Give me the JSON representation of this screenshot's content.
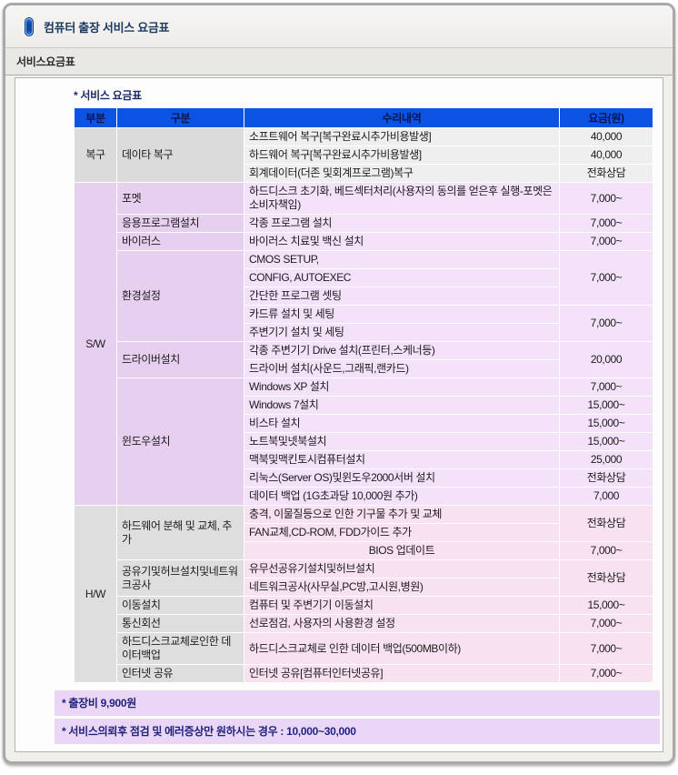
{
  "window": {
    "title": "컴퓨터 출장 서비스 요금표"
  },
  "section_bar": {
    "label": "서비스요금표"
  },
  "panel": {
    "caption": "* 서비스 요금표"
  },
  "table": {
    "headers": [
      "부분",
      "구분",
      "수리내역",
      "요금(원)"
    ],
    "rows": [
      {
        "sec": "rec",
        "p": {
          "text": "복구",
          "rowspan": 3
        },
        "c": {
          "text": "데이타 복구",
          "rowspan": 3
        },
        "d": {
          "text": "소프트웨어 복구[복구완료시추가비용발생]"
        },
        "f": {
          "text": "40,000"
        }
      },
      {
        "sec": "rec",
        "d": {
          "text": "하드웨어 복구[복구완료시추가비용발생]"
        },
        "f": {
          "text": "40,000"
        }
      },
      {
        "sec": "rec",
        "d": {
          "text": "회계데이터(더존 및회계프로그램)복구"
        },
        "f": {
          "text": "전화상담"
        }
      },
      {
        "sec": "sw",
        "p": {
          "text": "S/W",
          "rowspan": 17
        },
        "c": {
          "text": "포멧"
        },
        "d": {
          "text": "하드디스크 초기화, 베드섹터처리(사용자의 동의를 얻은후 실행-포멧은 소비자책임)"
        },
        "f": {
          "text": "7,000~"
        }
      },
      {
        "sec": "sw",
        "c": {
          "text": "응용프로그램설치"
        },
        "d": {
          "text": "각종 프로그램 설치"
        },
        "f": {
          "text": "7,000~"
        }
      },
      {
        "sec": "sw",
        "c": {
          "text": "바이러스"
        },
        "d": {
          "text": "바이러스 치료및 백신 설치"
        },
        "f": {
          "text": "7,000~"
        }
      },
      {
        "sec": "sw",
        "c": {
          "text": "환경설정",
          "rowspan": 5
        },
        "d": {
          "text": "CMOS SETUP,"
        },
        "f": {
          "text": "7,000~",
          "rowspan": 3
        }
      },
      {
        "sec": "sw",
        "d": {
          "text": "CONFIG, AUTOEXEC"
        }
      },
      {
        "sec": "sw",
        "d": {
          "text": "간단한 프로그램 셋팅"
        }
      },
      {
        "sec": "sw",
        "d": {
          "text": "카드류 설치 및 세팅"
        },
        "f": {
          "text": "7,000~",
          "rowspan": 2
        }
      },
      {
        "sec": "sw",
        "d": {
          "text": "주변기기 설치 및 세팅"
        }
      },
      {
        "sec": "sw",
        "c": {
          "text": "드라이버설치",
          "rowspan": 2
        },
        "d": {
          "text": "각종 주변기기 Drive 설치(프린터,스케너등)"
        },
        "f": {
          "text": "20,000",
          "rowspan": 2
        }
      },
      {
        "sec": "sw",
        "d": {
          "text": "드라이버 설치(사운드,그래픽,랜카드)"
        }
      },
      {
        "sec": "sw",
        "c": {
          "text": "윈도우설치",
          "rowspan": 7
        },
        "d": {
          "text": "Windows XP 설치"
        },
        "f": {
          "text": "7,000~"
        }
      },
      {
        "sec": "sw",
        "d": {
          "text": "Windows 7설치"
        },
        "f": {
          "text": "15,000~"
        }
      },
      {
        "sec": "sw",
        "d": {
          "text": "비스타 설치"
        },
        "f": {
          "text": "15,000~"
        }
      },
      {
        "sec": "sw",
        "d": {
          "text": "노트북및넷북설치"
        },
        "f": {
          "text": "15,000~"
        }
      },
      {
        "sec": "sw",
        "d": {
          "text": "맥북및맥킨토시컴퓨터설치"
        },
        "f": {
          "text": "25,000"
        }
      },
      {
        "sec": "sw",
        "d": {
          "text": "리눅스(Server OS)및윈도우2000서버 설치"
        },
        "f": {
          "text": "전화상담"
        }
      },
      {
        "sec": "sw",
        "d": {
          "text": "데이터 백업 (1G초과당 10,000원 추가)"
        },
        "f": {
          "text": "7,000"
        }
      },
      {
        "sec": "hw",
        "p": {
          "text": "H/W",
          "rowspan": 9
        },
        "c": {
          "text": "하드웨어 분해 및 교체, 추가",
          "rowspan": 3
        },
        "d": {
          "text": "충격, 이물질등으로 인한 기구물 추가 및 교체"
        },
        "f": {
          "text": "전화상담",
          "rowspan": 2
        }
      },
      {
        "sec": "hw",
        "d": {
          "text": "FAN교체,CD-ROM, FDD가이드 추가"
        }
      },
      {
        "sec": "hw",
        "d": {
          "text": "BIOS 업데이트",
          "align": "center"
        },
        "f": {
          "text": "7,000~"
        }
      },
      {
        "sec": "hw",
        "c": {
          "text": "공유기및허브설치및네트워크공사",
          "rowspan": 2
        },
        "d": {
          "text": "유무선공유기설치및허브설치"
        },
        "f": {
          "text": "전화상담",
          "rowspan": 2
        }
      },
      {
        "sec": "hw",
        "d": {
          "text": "네트워크공사(사무실,PC방,고시원,병원)"
        }
      },
      {
        "sec": "hw",
        "c": {
          "text": "이동설치"
        },
        "d": {
          "text": "컴퓨터 및 주변기기 이동설치"
        },
        "f": {
          "text": "15,000~"
        }
      },
      {
        "sec": "hw",
        "c": {
          "text": "통신회선"
        },
        "d": {
          "text": "선로점검, 사용자의 사용환경 설정"
        },
        "f": {
          "text": "7,000~"
        }
      },
      {
        "sec": "hw",
        "c": {
          "text": "하드디스크교체로인한 데이터백업"
        },
        "d": {
          "text": "하드디스크교체로 인한 데이터 백업(500MB이하)"
        },
        "f": {
          "text": "7,000~"
        }
      },
      {
        "sec": "hw",
        "c": {
          "text": "인터넷 공유"
        },
        "d": {
          "text": "인터넷 공유[컴퓨터인터넷공유]"
        },
        "f": {
          "text": "7,000~"
        }
      }
    ]
  },
  "notes": [
    "* 출장비 9,900원",
    "* 서비스의뢰후 점검 및 에러증상만 원하시는 경우 : 10,000~30,000"
  ],
  "colors": {
    "header_bg": "#0b53e3",
    "header_text": "#0a1553",
    "rec_left": "#dbdbdb",
    "rec_body": "#efefef",
    "sw_left": "#e7cff0",
    "sw_body": "#f4e1fa",
    "hw_left": "#dedede",
    "hw_body": "#f8e1f0",
    "note_bg": "#e9d7f5",
    "note_text": "#22227e",
    "title_text": "#1c3a5e",
    "caption_text": "#1d2b66"
  }
}
